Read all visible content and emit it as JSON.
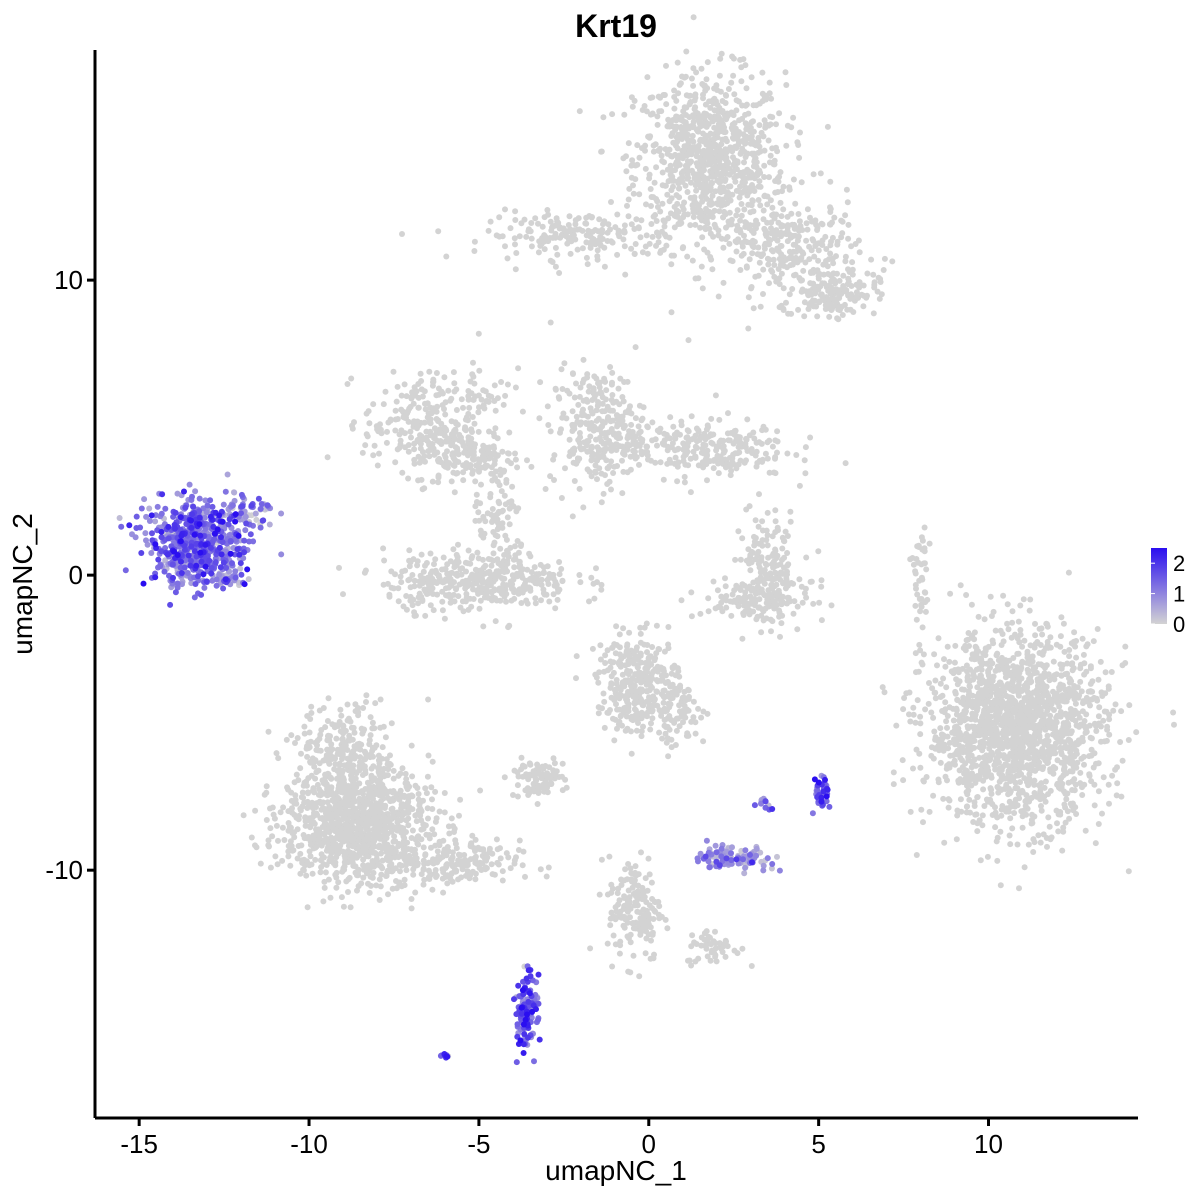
{
  "chart_data": {
    "type": "scatter",
    "title": "Krt19",
    "xlabel": "umapNC_1",
    "ylabel": "umapNC_2",
    "xlim": [
      -16.3,
      14.4
    ],
    "ylim": [
      -18.4,
      17.8
    ],
    "x_ticks": [
      -15,
      -10,
      -5,
      0,
      5,
      10
    ],
    "x_tick_labels": [
      "-15",
      "-10",
      "-5",
      "0",
      "5",
      "10"
    ],
    "y_ticks": [
      -10,
      0,
      10
    ],
    "y_tick_labels": [
      "-10",
      "0",
      "10"
    ],
    "grid": false,
    "color_scale": {
      "low": "#d3d3d3",
      "high": "#2a0ef0",
      "min": 0,
      "max": 2.5
    },
    "legend": {
      "placement": "right",
      "ticks": [
        0,
        1,
        2
      ],
      "labels": [
        "0",
        "1",
        "2"
      ]
    },
    "clusters": [
      {
        "cx": 1.8,
        "cy": 14.0,
        "sx": 1.1,
        "sy": 1.5,
        "n": 900,
        "expr": 0
      },
      {
        "cx": -2.0,
        "cy": 11.5,
        "sx": 1.4,
        "sy": 0.4,
        "n": 180,
        "expr": 0
      },
      {
        "cx": 4.2,
        "cy": 11.0,
        "sx": 1.0,
        "sy": 0.9,
        "n": 260,
        "expr": 0
      },
      {
        "cx": 5.5,
        "cy": 9.6,
        "sx": 0.6,
        "sy": 0.4,
        "n": 140,
        "expr": 0
      },
      {
        "cx": -6.8,
        "cy": 5.2,
        "sx": 0.8,
        "sy": 0.8,
        "n": 200,
        "expr": 0
      },
      {
        "cx": -5.3,
        "cy": 4.0,
        "sx": 0.8,
        "sy": 0.5,
        "n": 160,
        "expr": 0
      },
      {
        "cx": -4.8,
        "cy": 6.2,
        "sx": 0.4,
        "sy": 0.8,
        "n": 40,
        "expr": 0
      },
      {
        "cx": -1.5,
        "cy": 5.0,
        "sx": 0.7,
        "sy": 1.0,
        "n": 280,
        "expr": 0
      },
      {
        "cx": 1.5,
        "cy": 4.3,
        "sx": 1.3,
        "sy": 0.5,
        "n": 260,
        "expr": 0
      },
      {
        "cx": -5.0,
        "cy": -0.2,
        "sx": 1.4,
        "sy": 0.5,
        "n": 380,
        "expr": 0
      },
      {
        "cx": -4.4,
        "cy": 1.5,
        "sx": 0.4,
        "sy": 1.0,
        "n": 90,
        "expr": 0
      },
      {
        "cx": 3.5,
        "cy": 0.2,
        "sx": 0.5,
        "sy": 1.0,
        "n": 160,
        "expr": 0
      },
      {
        "cx": 3.2,
        "cy": -0.8,
        "sx": 0.8,
        "sy": 0.3,
        "n": 120,
        "expr": 0
      },
      {
        "cx": 8.0,
        "cy": -0.2,
        "sx": 0.15,
        "sy": 0.9,
        "n": 40,
        "expr": 0
      },
      {
        "cx": 10.8,
        "cy": -5.2,
        "sx": 1.3,
        "sy": 1.6,
        "n": 1700,
        "expr": 0
      },
      {
        "cx": -0.3,
        "cy": -3.7,
        "sx": 0.6,
        "sy": 0.8,
        "n": 320,
        "expr": 0
      },
      {
        "cx": 0.9,
        "cy": -4.7,
        "sx": 0.4,
        "sy": 0.6,
        "n": 70,
        "expr": 0
      },
      {
        "cx": -3.3,
        "cy": -6.9,
        "sx": 0.4,
        "sy": 0.3,
        "n": 90,
        "expr": 0
      },
      {
        "cx": -8.6,
        "cy": -8.5,
        "sx": 1.1,
        "sy": 1.0,
        "n": 1000,
        "expr": 0
      },
      {
        "cx": -8.9,
        "cy": -6.2,
        "sx": 0.7,
        "sy": 0.9,
        "n": 280,
        "expr": 0
      },
      {
        "cx": -5.8,
        "cy": -9.8,
        "sx": 1.0,
        "sy": 0.4,
        "n": 180,
        "expr": 0
      },
      {
        "cx": -0.4,
        "cy": -11.3,
        "sx": 0.4,
        "sy": 0.9,
        "n": 160,
        "expr": 0
      },
      {
        "cx": 1.9,
        "cy": -12.6,
        "sx": 0.4,
        "sy": 0.3,
        "n": 50,
        "expr": 0
      },
      {
        "cx": -13.3,
        "cy": 1.1,
        "sx": 0.75,
        "sy": 0.7,
        "n": 600,
        "expr": 1.2
      },
      {
        "cx": -11.8,
        "cy": 2.2,
        "sx": 0.35,
        "sy": 0.3,
        "n": 50,
        "expr": 1.0
      },
      {
        "cx": -12.4,
        "cy": -0.1,
        "sx": 0.3,
        "sy": 0.12,
        "n": 40,
        "expr": 0.6
      },
      {
        "cx": 2.5,
        "cy": -9.6,
        "sx": 0.5,
        "sy": 0.2,
        "n": 120,
        "expr": 0.6
      },
      {
        "cx": -3.6,
        "cy": -14.8,
        "sx": 0.15,
        "sy": 0.6,
        "n": 140,
        "expr": 1.4
      },
      {
        "cx": 5.1,
        "cy": -7.4,
        "sx": 0.12,
        "sy": 0.25,
        "n": 40,
        "expr": 1.6
      },
      {
        "cx": 3.4,
        "cy": -7.7,
        "sx": 0.1,
        "sy": 0.1,
        "n": 12,
        "expr": 1.1
      },
      {
        "cx": -6.0,
        "cy": -16.3,
        "sx": 0.1,
        "sy": 0.05,
        "n": 12,
        "expr": 1.8
      }
    ]
  }
}
